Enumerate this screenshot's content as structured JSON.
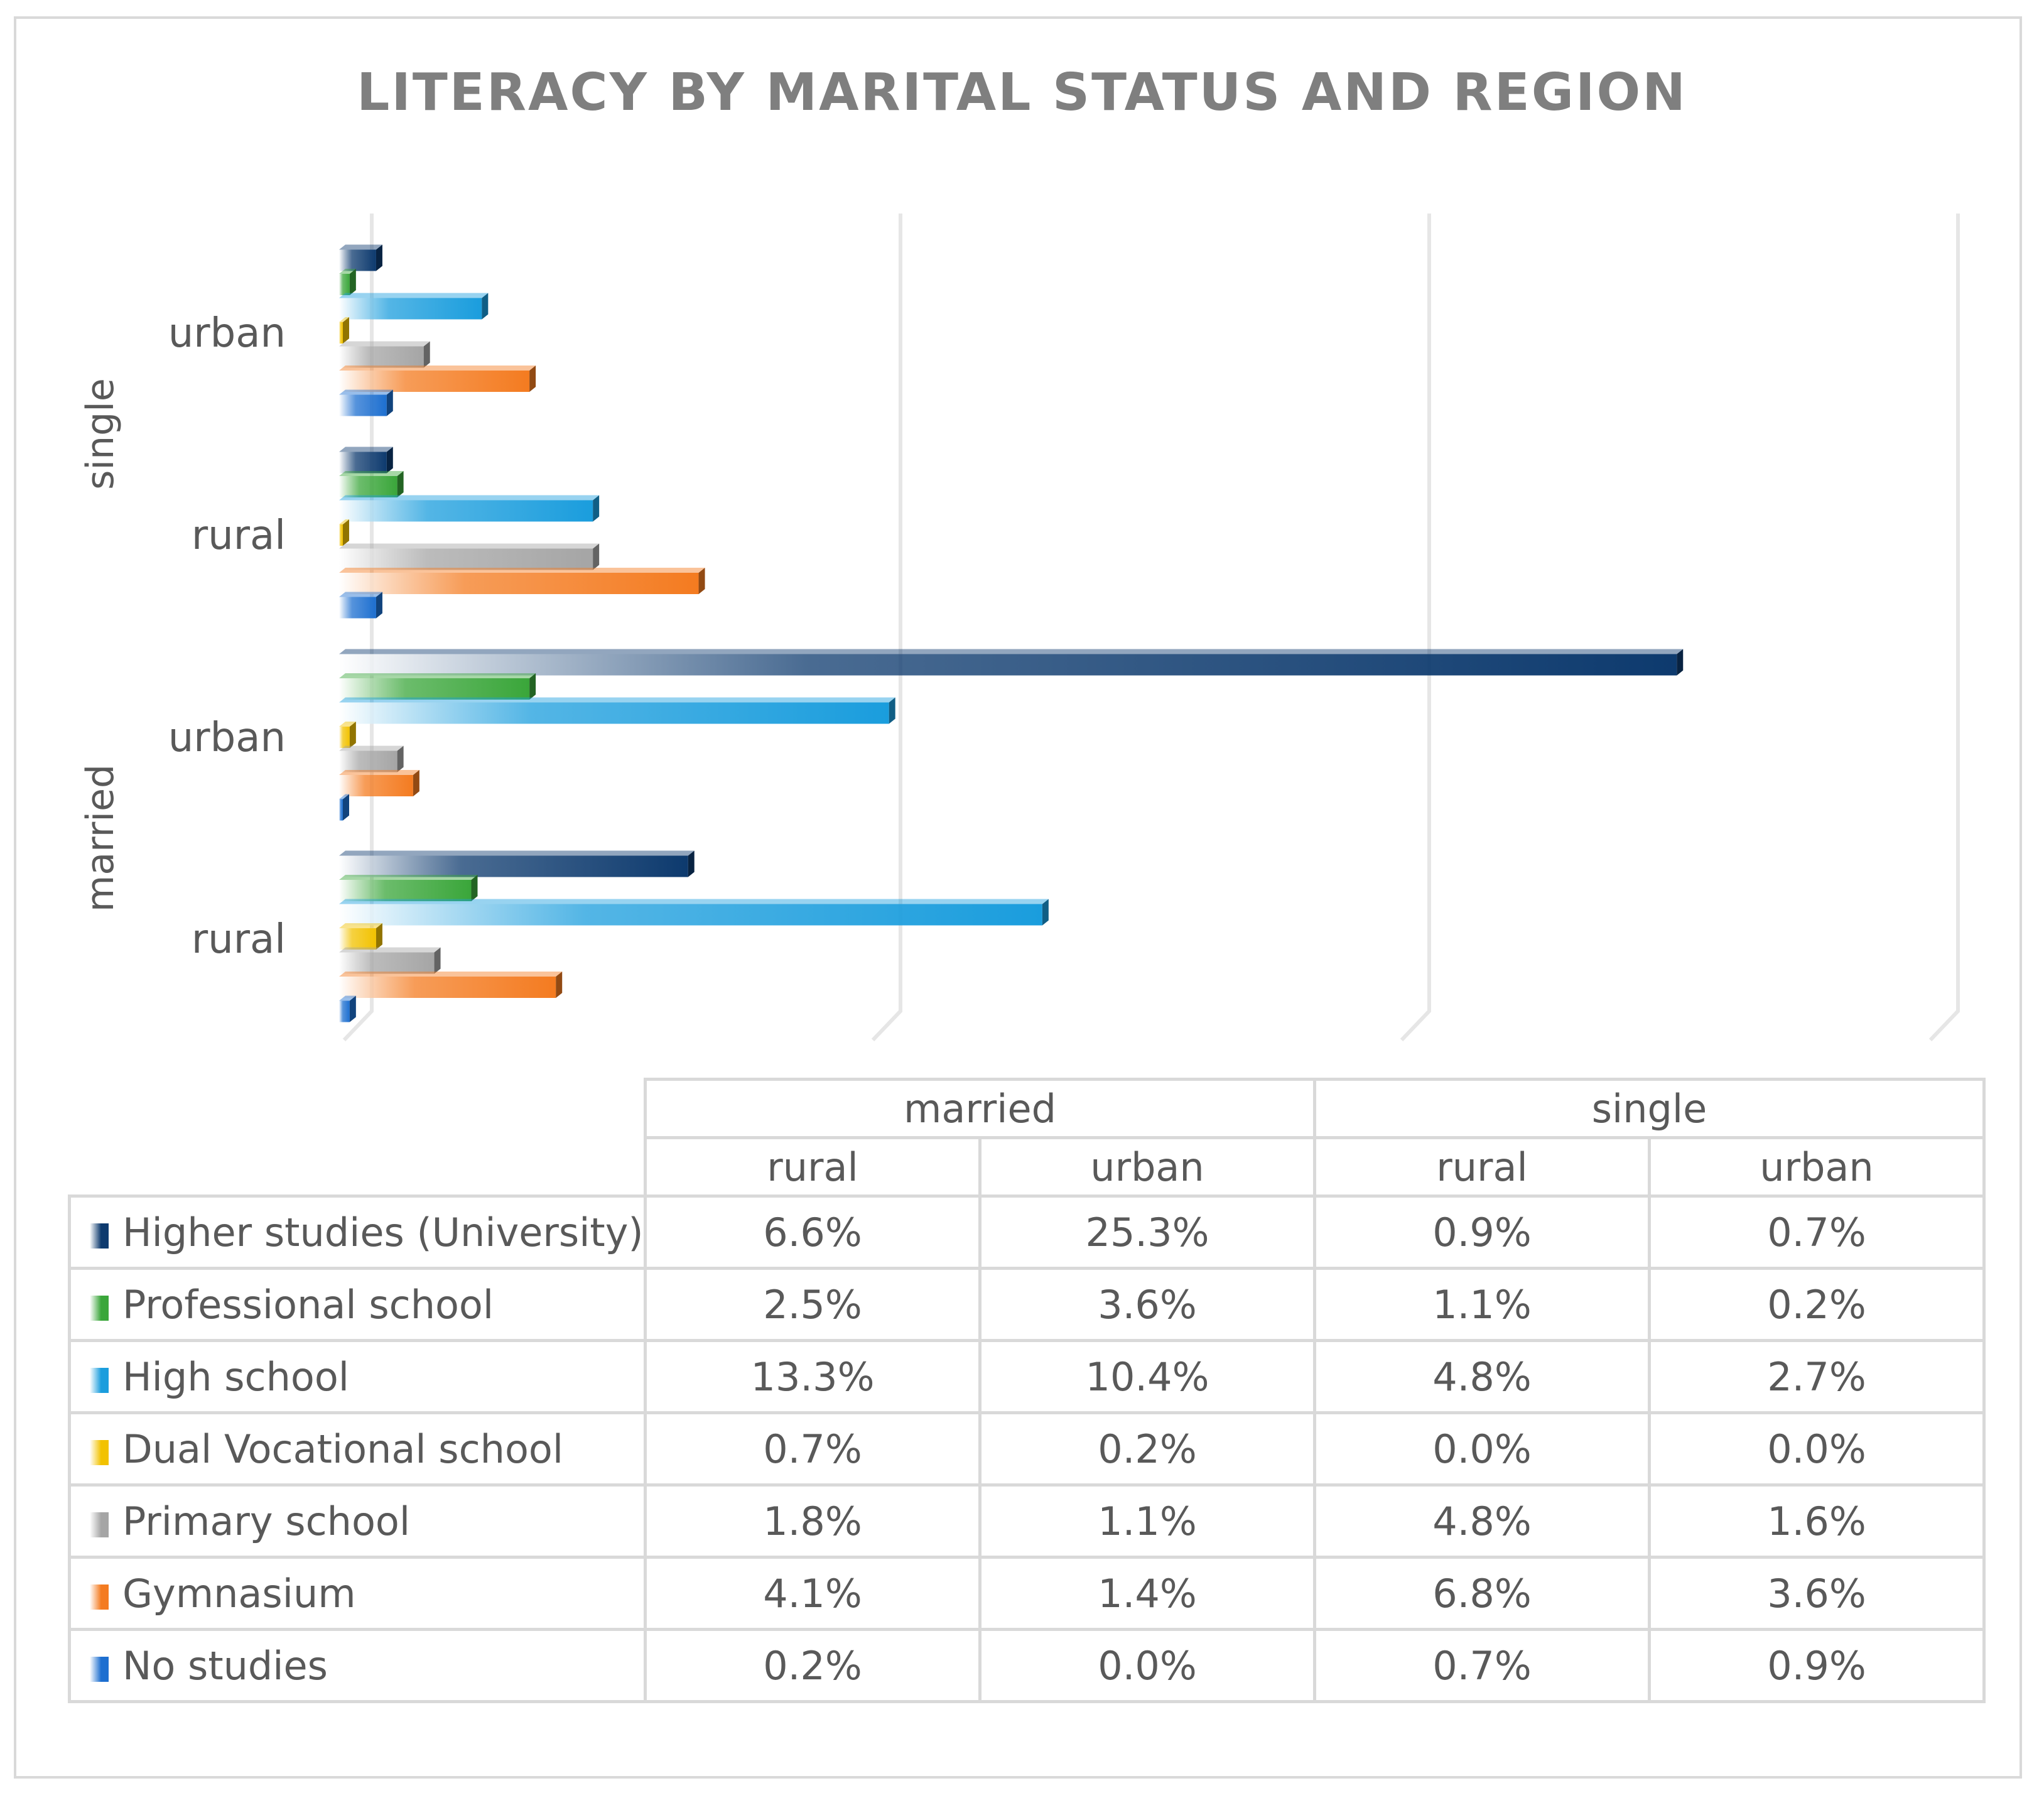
{
  "chart_data": {
    "type": "bar",
    "orientation": "horizontal",
    "style": "3d-gradient",
    "title": "LITERACY BY MARITAL STATUS AND REGION",
    "groups": [
      "married",
      "single"
    ],
    "categories": [
      {
        "group": "married",
        "label": "rural"
      },
      {
        "group": "married",
        "label": "urban"
      },
      {
        "group": "single",
        "label": "rural"
      },
      {
        "group": "single",
        "label": "urban"
      }
    ],
    "xlim": [
      0,
      30
    ],
    "grid": true,
    "series": [
      {
        "name": "Higher studies (University)",
        "color": "#0d3a6e",
        "values": [
          6.6,
          25.3,
          0.9,
          0.7
        ],
        "labels": [
          "6.6%",
          "25.3%",
          "0.9%",
          "0.7%"
        ]
      },
      {
        "name": "Professional school",
        "color": "#3aa63a",
        "values": [
          2.5,
          3.6,
          1.1,
          0.2
        ],
        "labels": [
          "2.5%",
          "3.6%",
          "1.1%",
          "0.2%"
        ]
      },
      {
        "name": "High school",
        "color": "#1a9ddd",
        "values": [
          13.3,
          10.4,
          4.8,
          2.7
        ],
        "labels": [
          "13.3%",
          "10.4%",
          "4.8%",
          "2.7%"
        ]
      },
      {
        "name": "Dual Vocational school",
        "color": "#f2c200",
        "values": [
          0.7,
          0.2,
          0.0,
          0.0
        ],
        "labels": [
          "0.7%",
          "0.2%",
          "0.0%",
          "0.0%"
        ]
      },
      {
        "name": "Primary school",
        "color": "#a5a5a5",
        "values": [
          1.8,
          1.1,
          4.8,
          1.6
        ],
        "labels": [
          "1.8%",
          "1.1%",
          "4.8%",
          "1.6%"
        ]
      },
      {
        "name": "Gymnasium",
        "color": "#f47b20",
        "values": [
          4.1,
          1.4,
          6.8,
          3.6
        ],
        "labels": [
          "4.1%",
          "1.4%",
          "6.8%",
          "3.6%"
        ]
      },
      {
        "name": "No studies",
        "color": "#1d6fd0",
        "values": [
          0.2,
          0.0,
          0.7,
          0.9
        ],
        "labels": [
          "0.2%",
          "0.0%",
          "0.7%",
          "0.9%"
        ]
      }
    ]
  }
}
